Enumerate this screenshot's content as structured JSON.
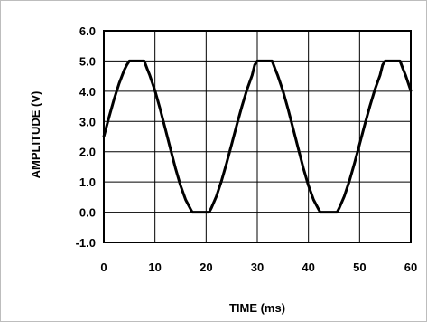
{
  "chart_data": {
    "type": "line",
    "xlabel": "TIME (ms)",
    "ylabel": "AMPLITUDE (V)",
    "xlim": [
      0,
      60
    ],
    "ylim": [
      -1.0,
      6.0
    ],
    "x_ticks": [
      0,
      10,
      20,
      30,
      40,
      50,
      60
    ],
    "x_tick_labels": [
      "0",
      "10",
      "20",
      "30",
      "40",
      "50",
      "60"
    ],
    "y_ticks": [
      6.0,
      5.0,
      4.0,
      3.0,
      2.0,
      1.0,
      0.0,
      -1.0
    ],
    "y_tick_labels": [
      "6.0",
      "5.0",
      "4.0",
      "3.0",
      "2.0",
      "1.0",
      "0.0",
      "-1.0"
    ],
    "grid": true,
    "series": [
      {
        "color": "#000000",
        "x": [
          0,
          1,
          2,
          3,
          4,
          4.5,
          5,
          6,
          7,
          7.9,
          8.5,
          9,
          10,
          11,
          12,
          13,
          14,
          15,
          16,
          17,
          17.3,
          18,
          19,
          20,
          20.6,
          21,
          22,
          23,
          24,
          25,
          26,
          27,
          28,
          29,
          29.5,
          30,
          31,
          32,
          32.9,
          33.5,
          34,
          35,
          36,
          37,
          38,
          39,
          40,
          41,
          42,
          42.3,
          43,
          44,
          45,
          45.6,
          46,
          47,
          48,
          49,
          50,
          51,
          52,
          53,
          54,
          54.5,
          55,
          56,
          57,
          57.9,
          58.5,
          59,
          60
        ],
        "values": [
          2.5,
          3.13,
          3.73,
          4.26,
          4.7,
          4.87,
          5.0,
          5.0,
          5.0,
          5.0,
          4.73,
          4.52,
          4.02,
          3.42,
          2.77,
          2.11,
          1.46,
          0.88,
          0.41,
          0.09,
          0.0,
          0.0,
          0.0,
          0.0,
          0.0,
          0.13,
          0.52,
          1.03,
          1.62,
          2.25,
          2.89,
          3.5,
          4.06,
          4.53,
          4.87,
          5.0,
          5.0,
          5.0,
          5.0,
          4.73,
          4.52,
          4.02,
          3.42,
          2.77,
          2.11,
          1.46,
          0.88,
          0.41,
          0.09,
          0.0,
          0.0,
          0.0,
          0.0,
          0.0,
          0.13,
          0.52,
          1.03,
          1.62,
          2.25,
          2.89,
          3.5,
          4.06,
          4.53,
          4.87,
          5.0,
          5.0,
          5.0,
          5.0,
          4.73,
          4.52,
          4.02
        ]
      }
    ]
  }
}
